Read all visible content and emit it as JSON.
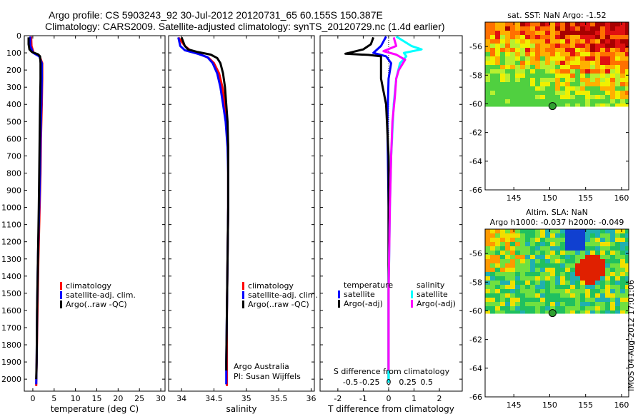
{
  "title": {
    "line1": "Argo profile: CS 5903243_92 30-Jul-2012 20120731_65 60.155S 150.387E",
    "line2": "Climatology: CARS2009. Satellite-adjusted climatology: synTS_20120729.nc (1.4d earlier)"
  },
  "watermark": "IMOS 04-Aug-2012 17:01:06",
  "colors": {
    "red": "#ff0000",
    "blue": "#0000ff",
    "black": "#000000",
    "cyan": "#00ffff",
    "magenta": "#ff00ff"
  },
  "chart_data": [
    {
      "type": "line",
      "xlabel": "temperature (deg C)",
      "xlim": [
        -2,
        31
      ],
      "ylim": [
        2070,
        0
      ],
      "xticks": [
        0,
        5,
        10,
        15,
        20,
        25,
        30
      ],
      "yticks": [
        0,
        100,
        200,
        300,
        400,
        500,
        600,
        700,
        800,
        900,
        1000,
        1100,
        1200,
        1300,
        1400,
        1500,
        1600,
        1700,
        1800,
        1900,
        2000
      ],
      "legend": [
        "climatology",
        "satellite-adj. clim.",
        "Argo(..raw -QC)"
      ],
      "series": [
        {
          "name": "climatology",
          "color": "red",
          "points": [
            [
              -0.4,
              5
            ],
            [
              -0.3,
              60
            ],
            [
              0.2,
              100
            ],
            [
              1.6,
              120
            ],
            [
              2.2,
              160
            ],
            [
              2.2,
              250
            ],
            [
              2.1,
              400
            ],
            [
              1.9,
              600
            ],
            [
              1.8,
              800
            ],
            [
              1.6,
              1000
            ],
            [
              1.3,
              1300
            ],
            [
              1.1,
              1600
            ],
            [
              0.9,
              1900
            ],
            [
              0.8,
              2040
            ]
          ]
        },
        {
          "name": "satellite-adj. clim.",
          "color": "blue",
          "points": [
            [
              -0.6,
              5
            ],
            [
              -0.6,
              60
            ],
            [
              0.1,
              100
            ],
            [
              1.5,
              120
            ],
            [
              2.1,
              160
            ],
            [
              2.1,
              250
            ],
            [
              2.0,
              400
            ],
            [
              1.8,
              600
            ],
            [
              1.7,
              800
            ],
            [
              1.5,
              1000
            ],
            [
              1.2,
              1300
            ],
            [
              1.0,
              1600
            ],
            [
              0.9,
              1900
            ],
            [
              0.8,
              2030
            ]
          ]
        },
        {
          "name": "Argo(..raw -QC)",
          "color": "black",
          "points": [
            [
              -1.0,
              10
            ],
            [
              -1.0,
              50
            ],
            [
              -0.8,
              80
            ],
            [
              -0.2,
              95
            ],
            [
              1.2,
              108
            ],
            [
              1.7,
              120
            ],
            [
              1.8,
              160
            ],
            [
              1.8,
              250
            ],
            [
              1.7,
              400
            ],
            [
              1.6,
              600
            ],
            [
              1.5,
              800
            ],
            [
              1.4,
              1000
            ],
            [
              1.2,
              1300
            ],
            [
              1.0,
              1600
            ],
            [
              0.9,
              1900
            ],
            [
              0.8,
              2000
            ]
          ]
        }
      ]
    },
    {
      "type": "line",
      "xlabel": "salinity",
      "xlim": [
        33.8,
        36.05
      ],
      "ylim": [
        2070,
        0
      ],
      "xticks": [
        34,
        34.5,
        35,
        35.5,
        36
      ],
      "legend": [
        "climatology",
        "satellite-adj. clim.",
        "Argo(..raw -QC)"
      ],
      "annotation": [
        "Argo Australia",
        "PI: Susan Wijffels"
      ],
      "series": [
        {
          "name": "climatology",
          "color": "red",
          "points": [
            [
              33.95,
              10
            ],
            [
              34.05,
              60
            ],
            [
              34.15,
              90
            ],
            [
              34.3,
              110
            ],
            [
              34.42,
              130
            ],
            [
              34.5,
              160
            ],
            [
              34.58,
              220
            ],
            [
              34.63,
              300
            ],
            [
              34.67,
              400
            ],
            [
              34.7,
              500
            ],
            [
              34.72,
              650
            ],
            [
              34.72,
              800
            ],
            [
              34.72,
              1000
            ],
            [
              34.71,
              1300
            ],
            [
              34.7,
              1600
            ],
            [
              34.7,
              1900
            ],
            [
              34.7,
              2040
            ]
          ]
        },
        {
          "name": "satellite-adj. clim.",
          "color": "blue",
          "points": [
            [
              33.95,
              10
            ],
            [
              33.98,
              60
            ],
            [
              34.05,
              85
            ],
            [
              34.25,
              105
            ],
            [
              34.4,
              125
            ],
            [
              34.48,
              160
            ],
            [
              34.55,
              220
            ],
            [
              34.6,
              300
            ],
            [
              34.64,
              400
            ],
            [
              34.68,
              500
            ],
            [
              34.71,
              650
            ],
            [
              34.72,
              800
            ],
            [
              34.72,
              1000
            ],
            [
              34.71,
              1300
            ],
            [
              34.7,
              1600
            ],
            [
              34.69,
              1900
            ],
            [
              34.69,
              2030
            ]
          ]
        },
        {
          "name": "Argo(..raw -QC)",
          "color": "black",
          "points": [
            [
              34.0,
              10
            ],
            [
              34.05,
              60
            ],
            [
              34.1,
              80
            ],
            [
              34.25,
              95
            ],
            [
              34.45,
              110
            ],
            [
              34.55,
              130
            ],
            [
              34.6,
              160
            ],
            [
              34.64,
              220
            ],
            [
              34.67,
              300
            ],
            [
              34.69,
              400
            ],
            [
              34.71,
              500
            ],
            [
              34.72,
              650
            ],
            [
              34.72,
              800
            ],
            [
              34.72,
              1000
            ],
            [
              34.71,
              1300
            ],
            [
              34.7,
              1600
            ],
            [
              34.69,
              1900
            ],
            [
              34.69,
              1950
            ]
          ]
        }
      ]
    },
    {
      "type": "line",
      "xlabel": "T difference from climatology",
      "xlabel_top": "S difference from climatology",
      "xlim": [
        -2.7,
        2.9
      ],
      "ylim": [
        2070,
        0
      ],
      "xticks": [
        -2,
        -1,
        0,
        1,
        2
      ],
      "top_ticks": [
        [
          "-0.5",
          -1.5
        ],
        [
          "-0.25",
          -0.75
        ],
        [
          "0",
          0
        ],
        [
          "0.25",
          0.75
        ],
        [
          "0.5",
          1.5
        ]
      ],
      "legend_headers": [
        "temperature",
        "salinity"
      ],
      "legend_left": [
        "satellite",
        "Argo(-adj)"
      ],
      "legend_right": [
        "satellite",
        "Argo(-adj)"
      ],
      "series": [
        {
          "name": "temperature satellite",
          "color": "blue",
          "points": [
            [
              -0.1,
              5
            ],
            [
              -0.3,
              60
            ],
            [
              -0.6,
              100
            ],
            [
              -0.1,
              120
            ],
            [
              0.1,
              160
            ],
            [
              0,
              250
            ],
            [
              -0.05,
              500
            ],
            [
              0,
              1000
            ],
            [
              0,
              1500
            ],
            [
              0,
              2020
            ]
          ]
        },
        {
          "name": "temperature Argo(-adj)",
          "color": "black",
          "points": [
            [
              -0.6,
              10
            ],
            [
              -0.7,
              50
            ],
            [
              -1.0,
              80
            ],
            [
              -1.7,
              105
            ],
            [
              -0.8,
              112
            ],
            [
              -0.3,
              120
            ],
            [
              -0.3,
              160
            ],
            [
              -0.3,
              250
            ],
            [
              -0.1,
              400
            ],
            [
              0,
              700
            ],
            [
              0,
              1000
            ],
            [
              0,
              1500
            ],
            [
              0,
              2000
            ]
          ]
        },
        {
          "name": "salinity satellite",
          "color": "cyan",
          "points": [
            [
              0.3,
              5
            ],
            [
              0.9,
              60
            ],
            [
              1.3,
              80
            ],
            [
              0.6,
              100
            ],
            [
              0.7,
              120
            ],
            [
              0.45,
              160
            ],
            [
              0.3,
              250
            ],
            [
              0.2,
              400
            ],
            [
              0.1,
              700
            ],
            [
              0.05,
              1000
            ],
            [
              0,
              1500
            ],
            [
              0,
              2020
            ]
          ]
        },
        {
          "name": "salinity Argo(-adj)",
          "color": "magenta",
          "points": [
            [
              0.2,
              10
            ],
            [
              0.3,
              60
            ],
            [
              -0.2,
              90
            ],
            [
              0.3,
              110
            ],
            [
              0.65,
              140
            ],
            [
              0.4,
              200
            ],
            [
              0.3,
              250
            ],
            [
              0.25,
              350
            ],
            [
              0.15,
              500
            ],
            [
              0.1,
              700
            ],
            [
              0.05,
              1000
            ],
            [
              0,
              1500
            ],
            [
              0,
              1950
            ]
          ]
        }
      ]
    },
    {
      "type": "heatmap",
      "title": "sat. SST: NaN Argo: -1.52",
      "xlim": [
        141,
        161
      ],
      "ylim": [
        -66,
        -54.3
      ],
      "xticks": [
        145,
        150,
        155,
        160
      ],
      "yticks": [
        -56,
        -58,
        -60,
        -62,
        -64,
        -66
      ],
      "data_south_limit": -60.2,
      "argo_position": {
        "lon": 150.387,
        "lat": -60.155
      }
    },
    {
      "type": "heatmap",
      "title": [
        "Altim. SLA: NaN",
        "Argo h1000: -0.037 h2000: -0.049"
      ],
      "xlim": [
        141,
        161
      ],
      "ylim": [
        -66,
        -54.3
      ],
      "xticks": [
        145,
        150,
        155,
        160
      ],
      "yticks": [
        -56,
        -58,
        -60,
        -62,
        -64,
        -66
      ],
      "data_south_limit": -60.2,
      "argo_position": {
        "lon": 150.387,
        "lat": -60.155
      }
    }
  ]
}
